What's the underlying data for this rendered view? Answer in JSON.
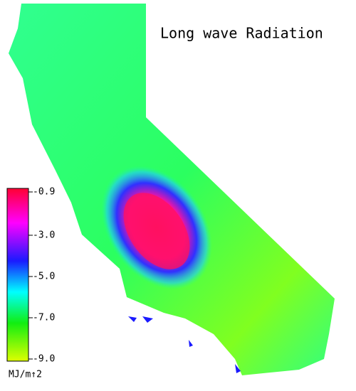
{
  "title": "Long wave Radiation",
  "colorbar": {
    "lim": [
      -9,
      -0.9
    ],
    "ticks": [
      {
        "value": -0.9,
        "label": "-0.9"
      },
      {
        "value": -3,
        "label": "-3.0"
      },
      {
        "value": -5,
        "label": "-5.0"
      },
      {
        "value": -7,
        "label": "-7.0"
      },
      {
        "value": -9,
        "label": "-9.0"
      }
    ],
    "unit": "MJ/m↑2"
  }
}
